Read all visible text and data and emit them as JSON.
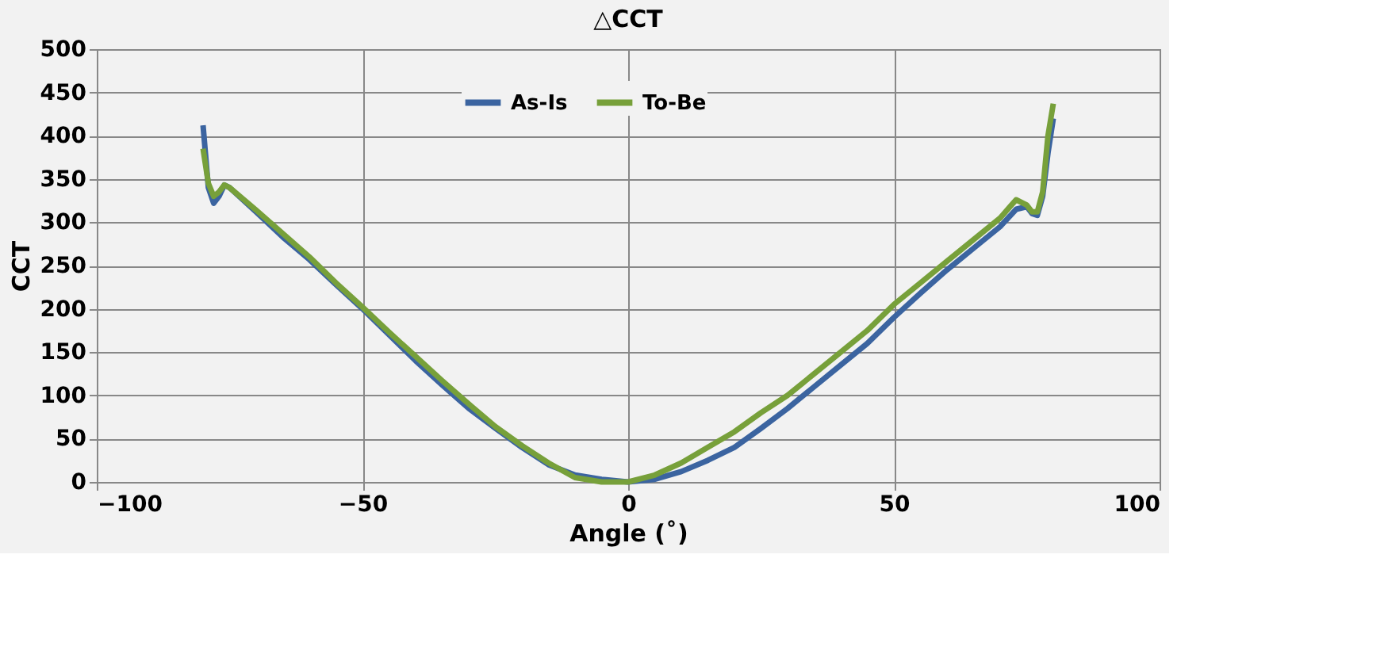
{
  "chart_data": {
    "type": "line",
    "title": "△CCT",
    "xlabel": "Angle (˚)",
    "ylabel": "CCT",
    "xlim": [
      -100,
      100
    ],
    "xticks": [
      -100,
      -50,
      0,
      50,
      100
    ],
    "ylim": [
      0,
      500
    ],
    "yticks": [
      0,
      50,
      100,
      150,
      200,
      250,
      300,
      350,
      400,
      450,
      500
    ],
    "grid": true,
    "legend": "top",
    "marker": "none",
    "line_style": "solid",
    "series": [
      {
        "name": "As-Is",
        "color": "#3b64a0",
        "x": [
          -80,
          -79,
          -78,
          -77,
          -76,
          -75,
          -70,
          -65,
          -60,
          -55,
          -50,
          -45,
          -40,
          -35,
          -30,
          -25,
          -20,
          -15,
          -10,
          -5,
          0,
          5,
          10,
          15,
          20,
          25,
          30,
          35,
          40,
          45,
          50,
          55,
          60,
          65,
          70,
          73,
          75,
          76,
          77,
          78,
          79,
          80
        ],
        "values": [
          412,
          340,
          322,
          330,
          343,
          340,
          312,
          283,
          257,
          228,
          200,
          170,
          140,
          112,
          85,
          62,
          40,
          20,
          8,
          3,
          0,
          3,
          12,
          25,
          40,
          62,
          85,
          110,
          135,
          160,
          190,
          218,
          245,
          270,
          295,
          315,
          318,
          310,
          308,
          330,
          380,
          420
        ]
      },
      {
        "name": "To-Be",
        "color": "#77a03a",
        "x": [
          -80,
          -79,
          -78,
          -77,
          -76,
          -75,
          -70,
          -65,
          -60,
          -55,
          -50,
          -45,
          -40,
          -35,
          -30,
          -25,
          -20,
          -15,
          -10,
          -5,
          0,
          5,
          10,
          15,
          20,
          25,
          30,
          35,
          40,
          45,
          50,
          55,
          60,
          65,
          70,
          73,
          75,
          76,
          77,
          78,
          79,
          80
        ],
        "values": [
          385,
          345,
          330,
          335,
          343,
          340,
          314,
          287,
          260,
          230,
          202,
          173,
          145,
          117,
          90,
          64,
          42,
          22,
          5,
          0,
          0,
          8,
          22,
          40,
          58,
          80,
          100,
          125,
          150,
          175,
          205,
          230,
          255,
          280,
          305,
          326,
          320,
          312,
          312,
          335,
          400,
          437
        ]
      }
    ]
  }
}
